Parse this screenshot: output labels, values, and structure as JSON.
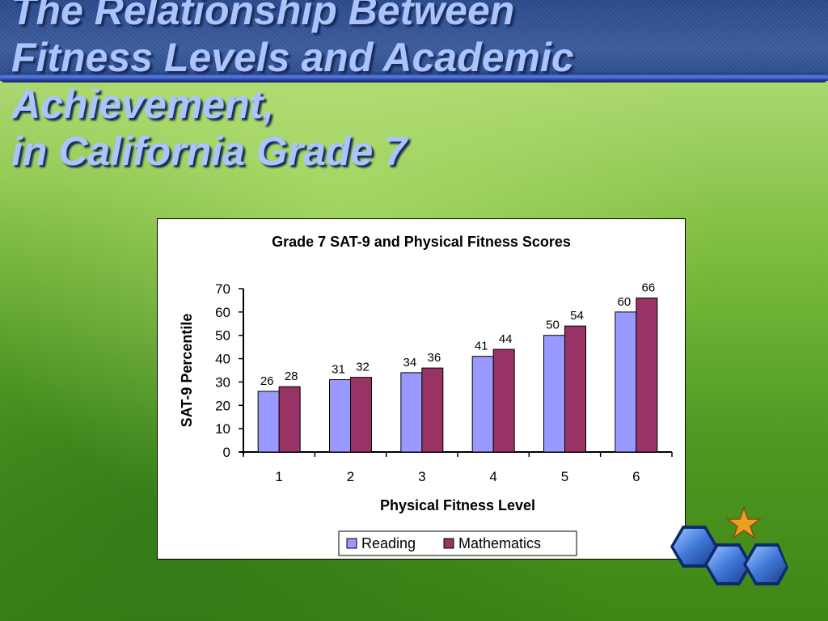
{
  "slide": {
    "title_lines": [
      "The Relationship Between",
      "Fitness Levels and Academic",
      "Achievement,",
      "in California Grade 7"
    ]
  },
  "chart_data": {
    "type": "bar",
    "title": "Grade 7 SAT-9 and Physical Fitness Scores",
    "xlabel": "Physical Fitness Level",
    "ylabel": "SAT-9 Percentile",
    "categories": [
      "1",
      "2",
      "3",
      "4",
      "5",
      "6"
    ],
    "series": [
      {
        "name": "Reading",
        "values": [
          26,
          31,
          34,
          41,
          50,
          60
        ],
        "color": "#9999ff"
      },
      {
        "name": "Mathematics",
        "values": [
          28,
          32,
          36,
          44,
          54,
          66
        ],
        "color": "#993366"
      }
    ],
    "ylim": [
      0,
      70
    ],
    "yticks": [
      "0",
      "10",
      "20",
      "30",
      "40",
      "50",
      "60",
      "70"
    ],
    "legend_position": "bottom",
    "grid": false
  },
  "decor": {
    "star_icon": "star-icon",
    "hexagon_icon": "hexagon-icon",
    "star_color": "#e8a020",
    "hex_color": "#3f78d8"
  }
}
